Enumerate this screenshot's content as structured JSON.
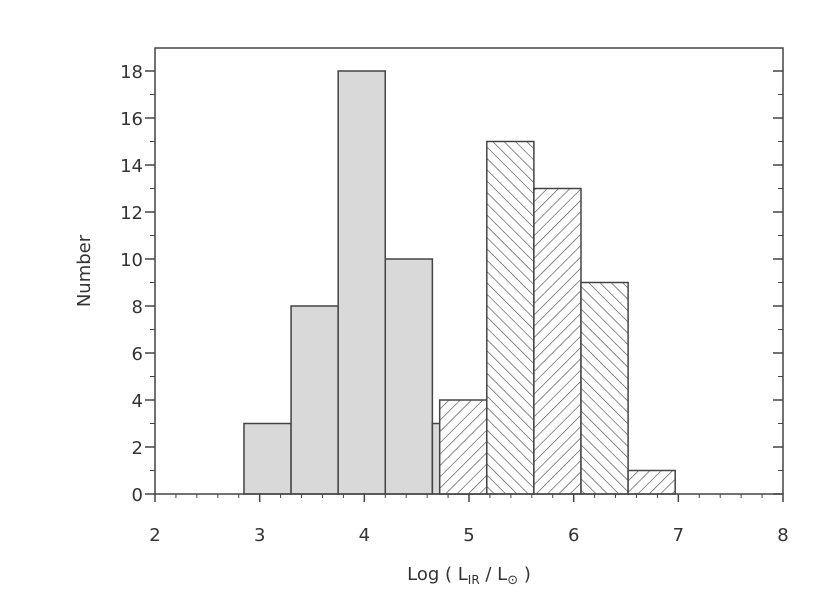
{
  "chart_data": {
    "type": "bar",
    "title": "",
    "xlabel": {
      "prefix": "Log ( L",
      "sub1": "IR",
      "mid": " / L",
      "sun_symbol": "⊙",
      "suffix": " )"
    },
    "ylabel": "Number",
    "xlim": [
      2,
      8
    ],
    "ylim": [
      0,
      19
    ],
    "xticks": [
      "2",
      "3",
      "4",
      "5",
      "6",
      "7",
      "8"
    ],
    "yticks": [
      "0",
      "2",
      "4",
      "6",
      "8",
      "10",
      "12",
      "14",
      "16",
      "18"
    ],
    "bin_width": 0.45,
    "series": [
      {
        "style": "solid-gray",
        "color": "#d9d9d9",
        "bin_starts": [
          2.85,
          3.3,
          3.75,
          4.2,
          4.65
        ],
        "values": [
          3,
          8,
          18,
          10,
          3
        ]
      },
      {
        "style": "hatched",
        "color": "#444444",
        "bin_starts": [
          4.72,
          5.17,
          5.62,
          6.07,
          6.52
        ],
        "hatch": [
          "forward",
          "back",
          "forward",
          "back",
          "forward"
        ],
        "values": [
          4,
          15,
          13,
          9,
          1
        ]
      }
    ]
  }
}
